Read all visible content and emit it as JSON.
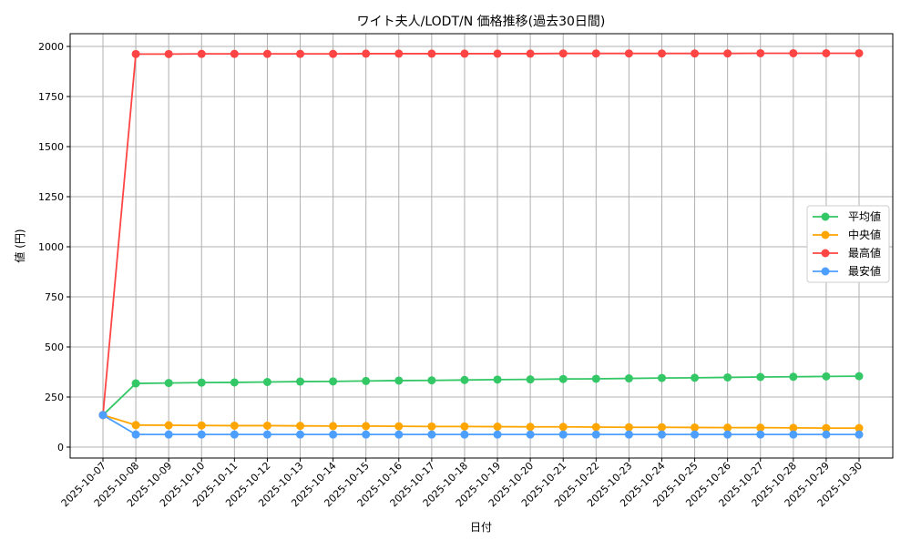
{
  "chart_data": {
    "type": "line",
    "title": "ワイト夫人/LODT/N 価格推移(過去30日間)",
    "xlabel": "日付",
    "ylabel": "値 (円)",
    "ylim": [
      -60,
      2060
    ],
    "yticks": [
      0,
      250,
      500,
      750,
      1000,
      1250,
      1500,
      1750,
      2000
    ],
    "grid": true,
    "legend_position": "center-right",
    "x": [
      "2025-10-07",
      "2025-10-08",
      "2025-10-09",
      "2025-10-10",
      "2025-10-11",
      "2025-10-12",
      "2025-10-13",
      "2025-10-14",
      "2025-10-15",
      "2025-10-16",
      "2025-10-17",
      "2025-10-18",
      "2025-10-19",
      "2025-10-20",
      "2025-10-21",
      "2025-10-22",
      "2025-10-23",
      "2025-10-24",
      "2025-10-25",
      "2025-10-26",
      "2025-10-27",
      "2025-10-28",
      "2025-10-29",
      "2025-10-30"
    ],
    "series": [
      {
        "name": "平均値",
        "color": "#33c766",
        "values": [
          160,
          318,
          320,
          322,
          323,
          325,
          327,
          328,
          330,
          332,
          333,
          335,
          337,
          338,
          340,
          341,
          343,
          345,
          346,
          348,
          350,
          351,
          353,
          354
        ]
      },
      {
        "name": "中央値",
        "color": "#ffa500",
        "values": [
          160,
          110,
          109,
          108,
          107,
          107,
          106,
          105,
          105,
          104,
          103,
          103,
          102,
          101,
          101,
          100,
          99,
          99,
          98,
          97,
          97,
          96,
          95,
          95
        ]
      },
      {
        "name": "最高値",
        "color": "#ff4444",
        "values": [
          160,
          1962,
          1962,
          1963,
          1963,
          1963,
          1963,
          1963,
          1964,
          1964,
          1964,
          1964,
          1964,
          1964,
          1965,
          1965,
          1965,
          1965,
          1965,
          1965,
          1966,
          1966,
          1966,
          1966
        ]
      },
      {
        "name": "最安値",
        "color": "#4d9fff",
        "values": [
          160,
          63,
          63,
          63,
          63,
          63,
          63,
          63,
          63,
          63,
          63,
          63,
          63,
          63,
          63,
          63,
          63,
          63,
          63,
          63,
          63,
          63,
          63,
          63
        ]
      }
    ]
  }
}
